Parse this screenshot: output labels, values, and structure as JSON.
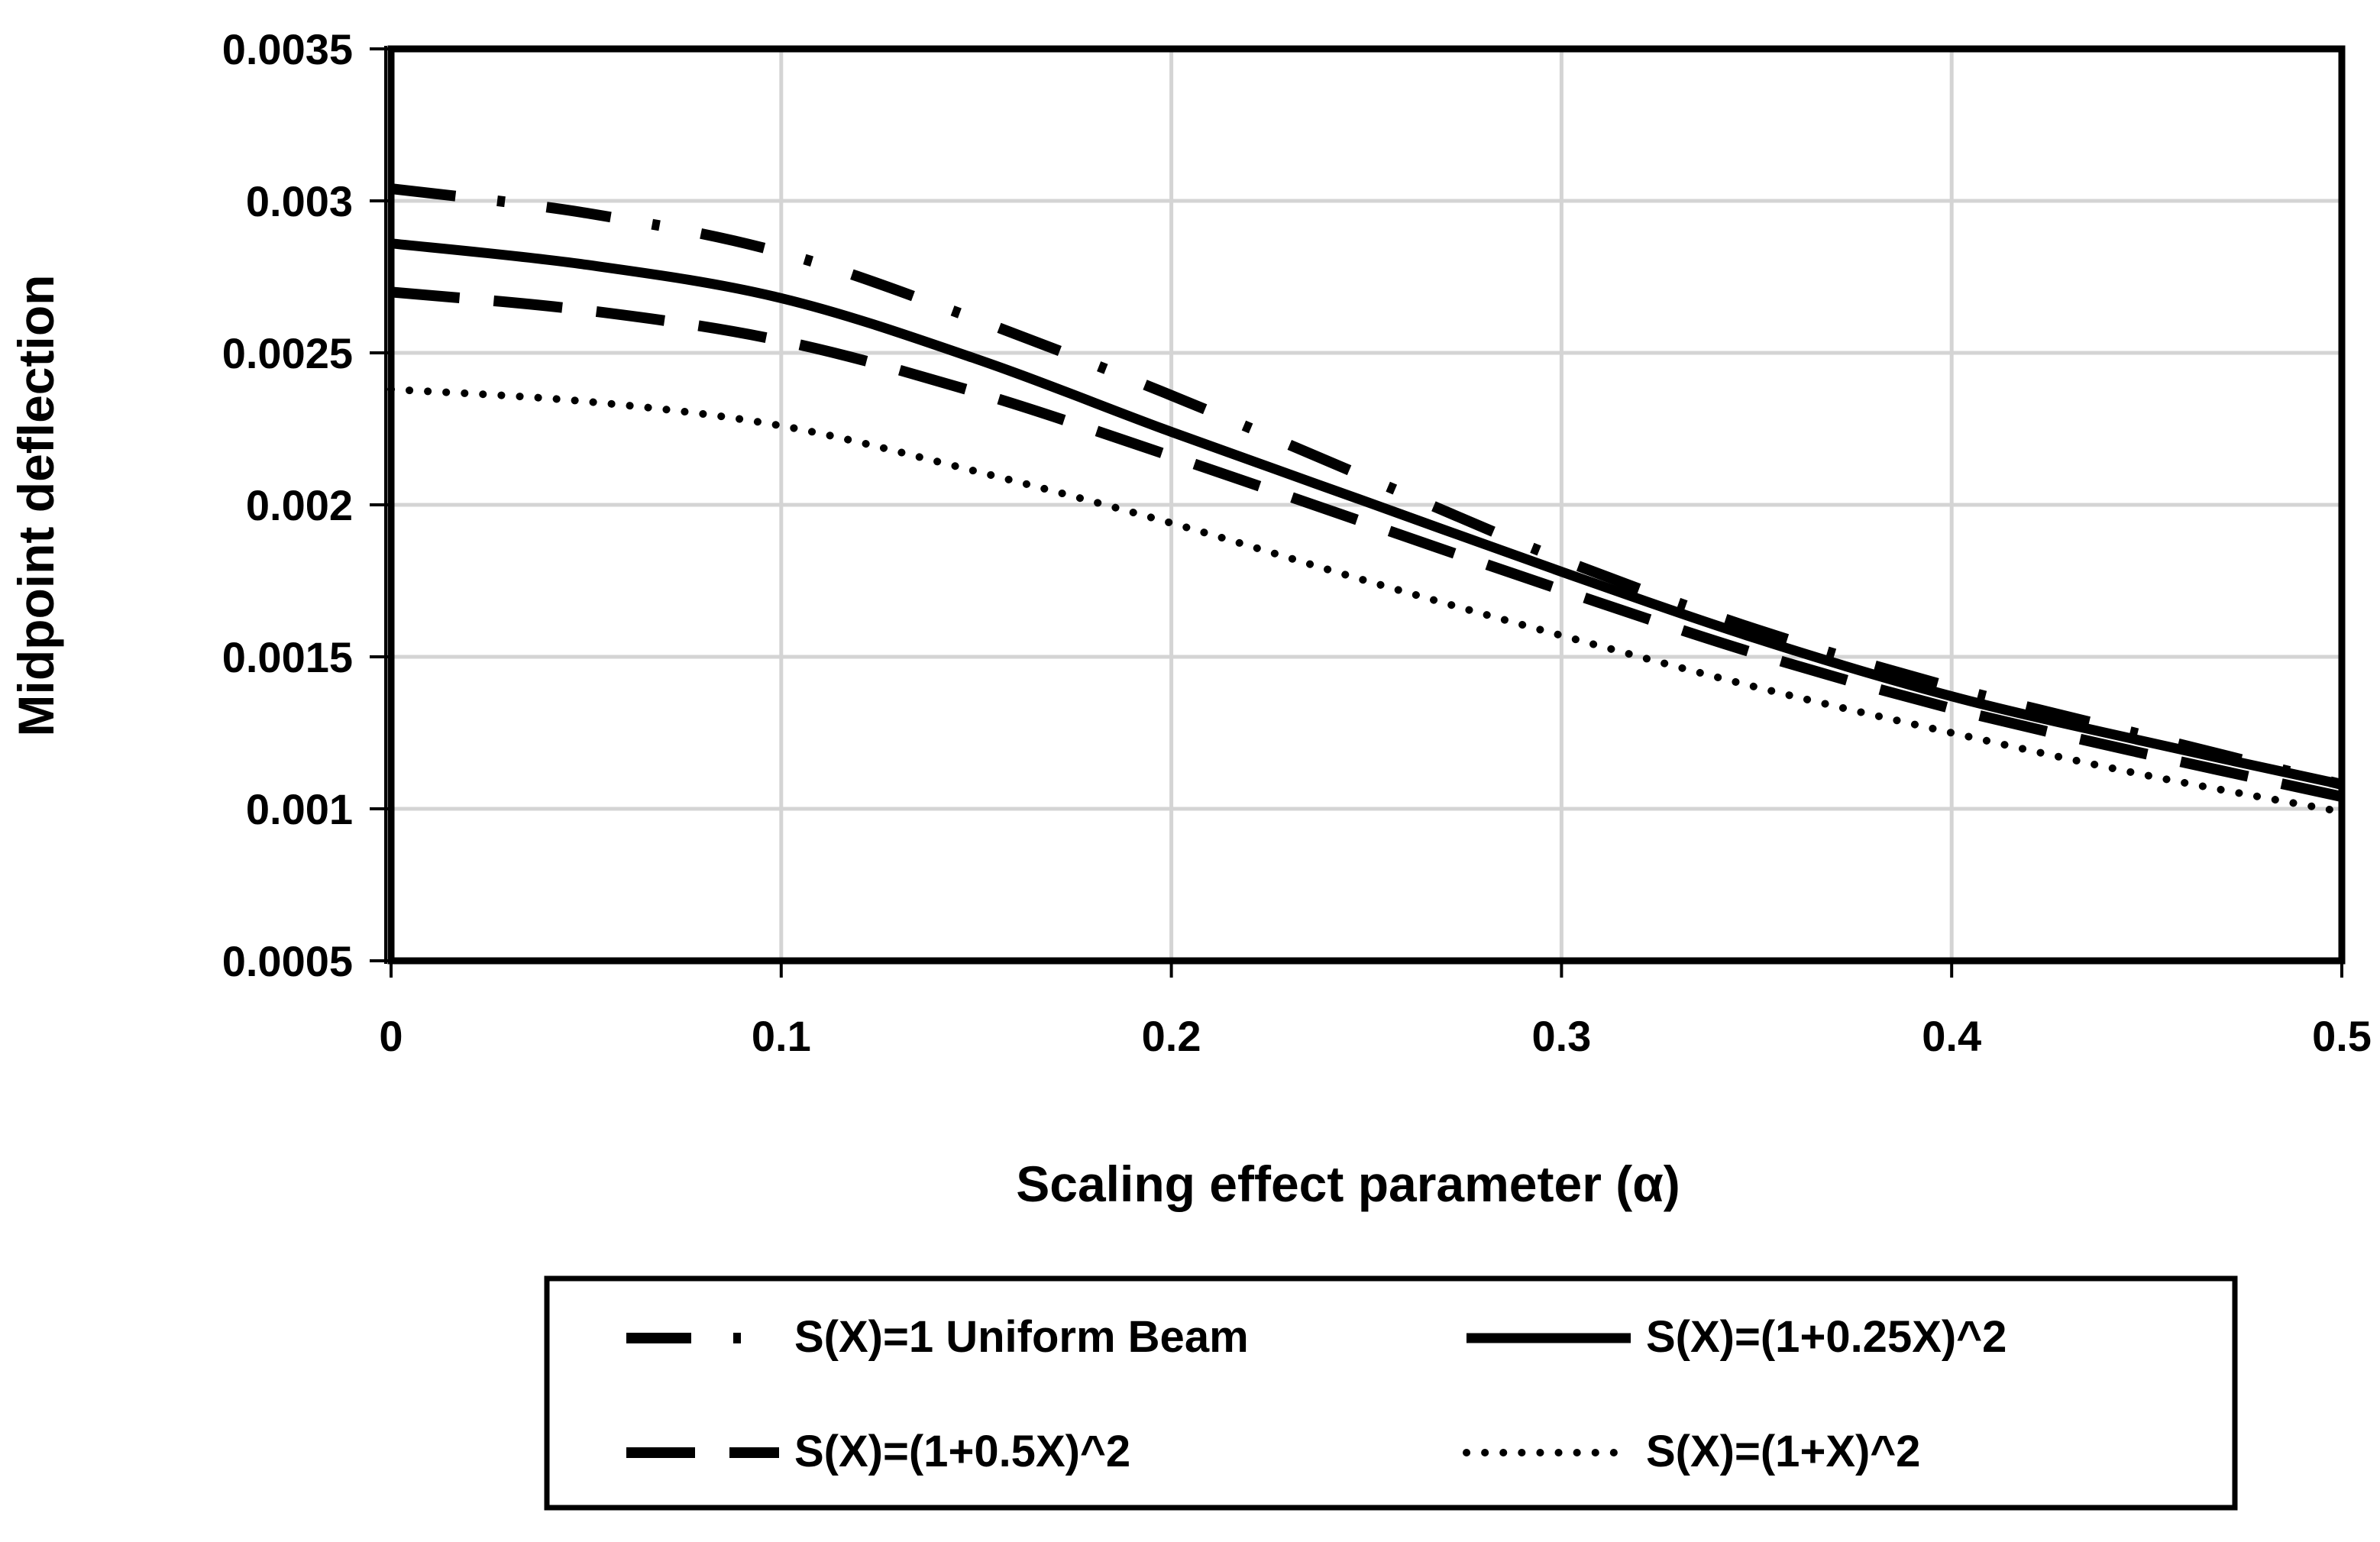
{
  "chart_data": {
    "type": "line",
    "title": "",
    "xlabel": "Scaling effect parameter  (α)",
    "ylabel": "Midpoint deflection",
    "xlim": [
      0,
      0.5
    ],
    "ylim": [
      0.0005,
      0.0035
    ],
    "xticks": [
      0,
      0.1,
      0.2,
      0.3,
      0.4,
      0.5
    ],
    "yticks": [
      0.0005,
      0.001,
      0.0015,
      0.002,
      0.0025,
      0.003,
      0.0035
    ],
    "xtick_labels": [
      "0",
      "0.1",
      "0.2",
      "0.3",
      "0.4",
      "0.5"
    ],
    "ytick_labels": [
      "0.0005",
      "0.001",
      "0.0015",
      "0.002",
      "0.0025",
      "0.003",
      "0.0035"
    ],
    "grid": true,
    "legend_position": "bottom",
    "x": [
      0,
      0.05,
      0.1,
      0.15,
      0.2,
      0.25,
      0.3,
      0.35,
      0.4,
      0.45,
      0.5
    ],
    "series": [
      {
        "name": "S(X)=1  Uniform Beam",
        "style": "dash-dot",
        "values": [
          0.00304,
          0.00296,
          0.00283,
          0.00261,
          0.00236,
          0.00209,
          0.00182,
          0.00159,
          0.0014,
          0.00124,
          0.00108
        ]
      },
      {
        "name": "S(X)=(1+0.25X)^2",
        "style": "solid",
        "values": [
          0.00286,
          0.00279,
          0.00268,
          0.00248,
          0.00224,
          0.00201,
          0.00178,
          0.00156,
          0.00137,
          0.00122,
          0.00108
        ]
      },
      {
        "name": "S(X)=(1+0.5X)^2",
        "style": "long-dash",
        "values": [
          0.0027,
          0.00264,
          0.00254,
          0.00237,
          0.00216,
          0.00194,
          0.00172,
          0.00151,
          0.00133,
          0.00118,
          0.00104
        ]
      },
      {
        "name": "S(X)=(1+X)^2",
        "style": "dotted",
        "values": [
          0.00238,
          0.00234,
          0.00226,
          0.00211,
          0.00194,
          0.00175,
          0.00157,
          0.0014,
          0.00125,
          0.00111,
          0.00099
        ]
      }
    ]
  }
}
